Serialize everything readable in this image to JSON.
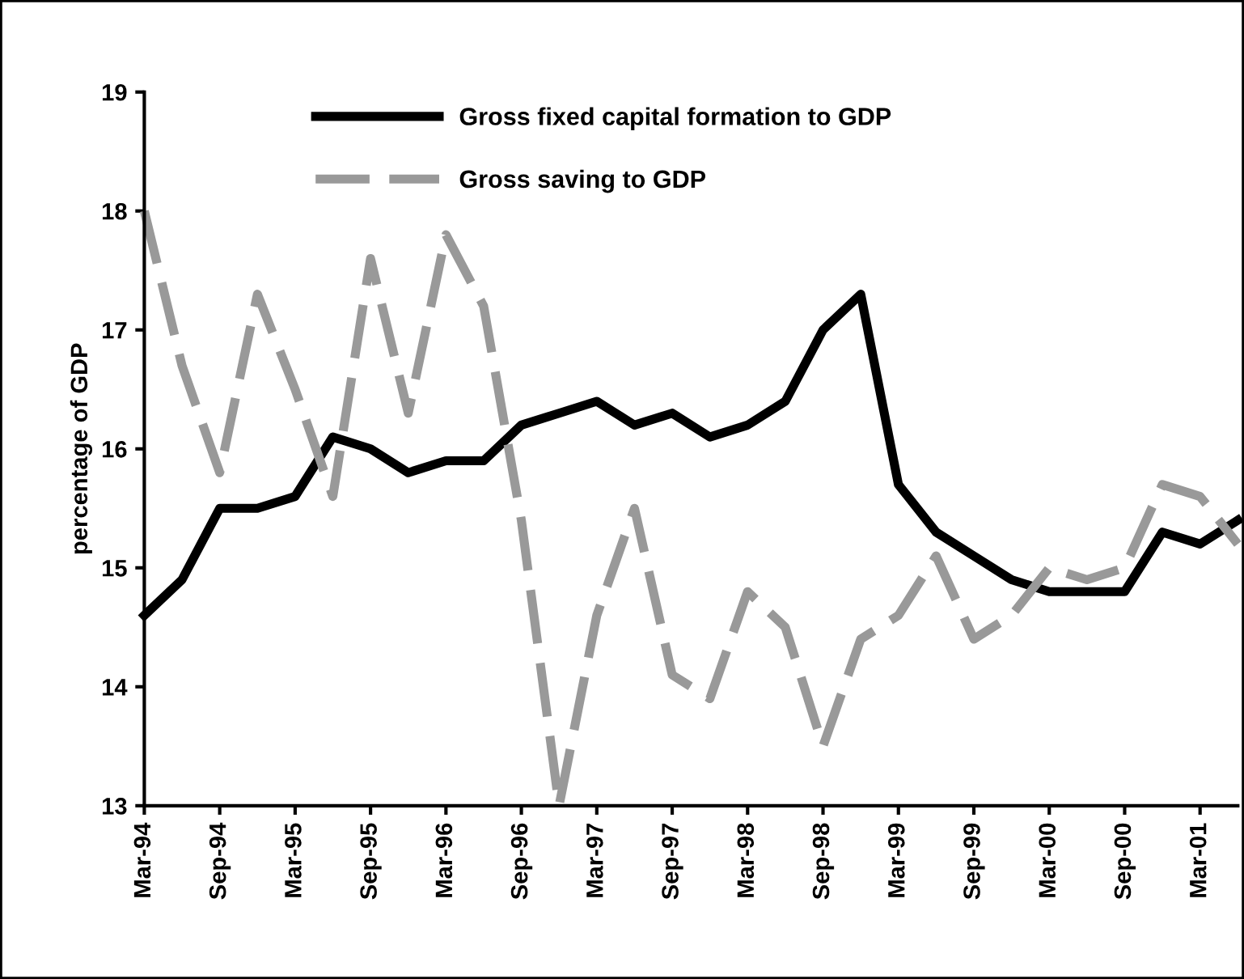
{
  "chart_data": {
    "type": "line",
    "ylabel": "percentage of GDP",
    "categories": [
      "Mar-94",
      null,
      "Sep-94",
      null,
      "Mar-95",
      null,
      "Sep-95",
      null,
      "Mar-96",
      null,
      "Sep-96",
      null,
      "Mar-97",
      null,
      "Sep-97",
      null,
      "Mar-98",
      null,
      "Sep-98",
      null,
      "Mar-99",
      null,
      "Sep-99",
      null,
      "Mar-00",
      null,
      "Sep-00",
      null,
      "Mar-01",
      null
    ],
    "series": [
      {
        "name": "Gross fixed capital formation to GDP",
        "color": "#000000",
        "line_style": "solid",
        "values": [
          14.6,
          14.9,
          15.5,
          15.5,
          15.6,
          16.1,
          16.0,
          15.8,
          15.9,
          15.9,
          16.2,
          16.3,
          16.4,
          16.2,
          16.3,
          16.1,
          16.2,
          16.4,
          17.0,
          17.3,
          15.7,
          15.3,
          15.1,
          14.9,
          14.8,
          14.8,
          14.8,
          15.3,
          15.2,
          15.4
        ]
      },
      {
        "name": "Gross saving to GDP",
        "color": "#999999",
        "line_style": "dashed",
        "values": [
          18.0,
          16.7,
          15.8,
          17.3,
          16.5,
          15.6,
          17.6,
          16.3,
          17.8,
          17.2,
          15.4,
          13.0,
          14.6,
          15.5,
          14.1,
          13.9,
          14.8,
          14.5,
          13.5,
          14.4,
          14.6,
          15.1,
          14.4,
          14.6,
          15.0,
          14.9,
          15.0,
          15.7,
          15.6,
          15.2
        ]
      }
    ],
    "ylim": [
      13,
      19
    ],
    "yticks": [
      13,
      14,
      15,
      16,
      17,
      18,
      19
    ],
    "legend": "top",
    "grid": false,
    "marker": "none"
  }
}
